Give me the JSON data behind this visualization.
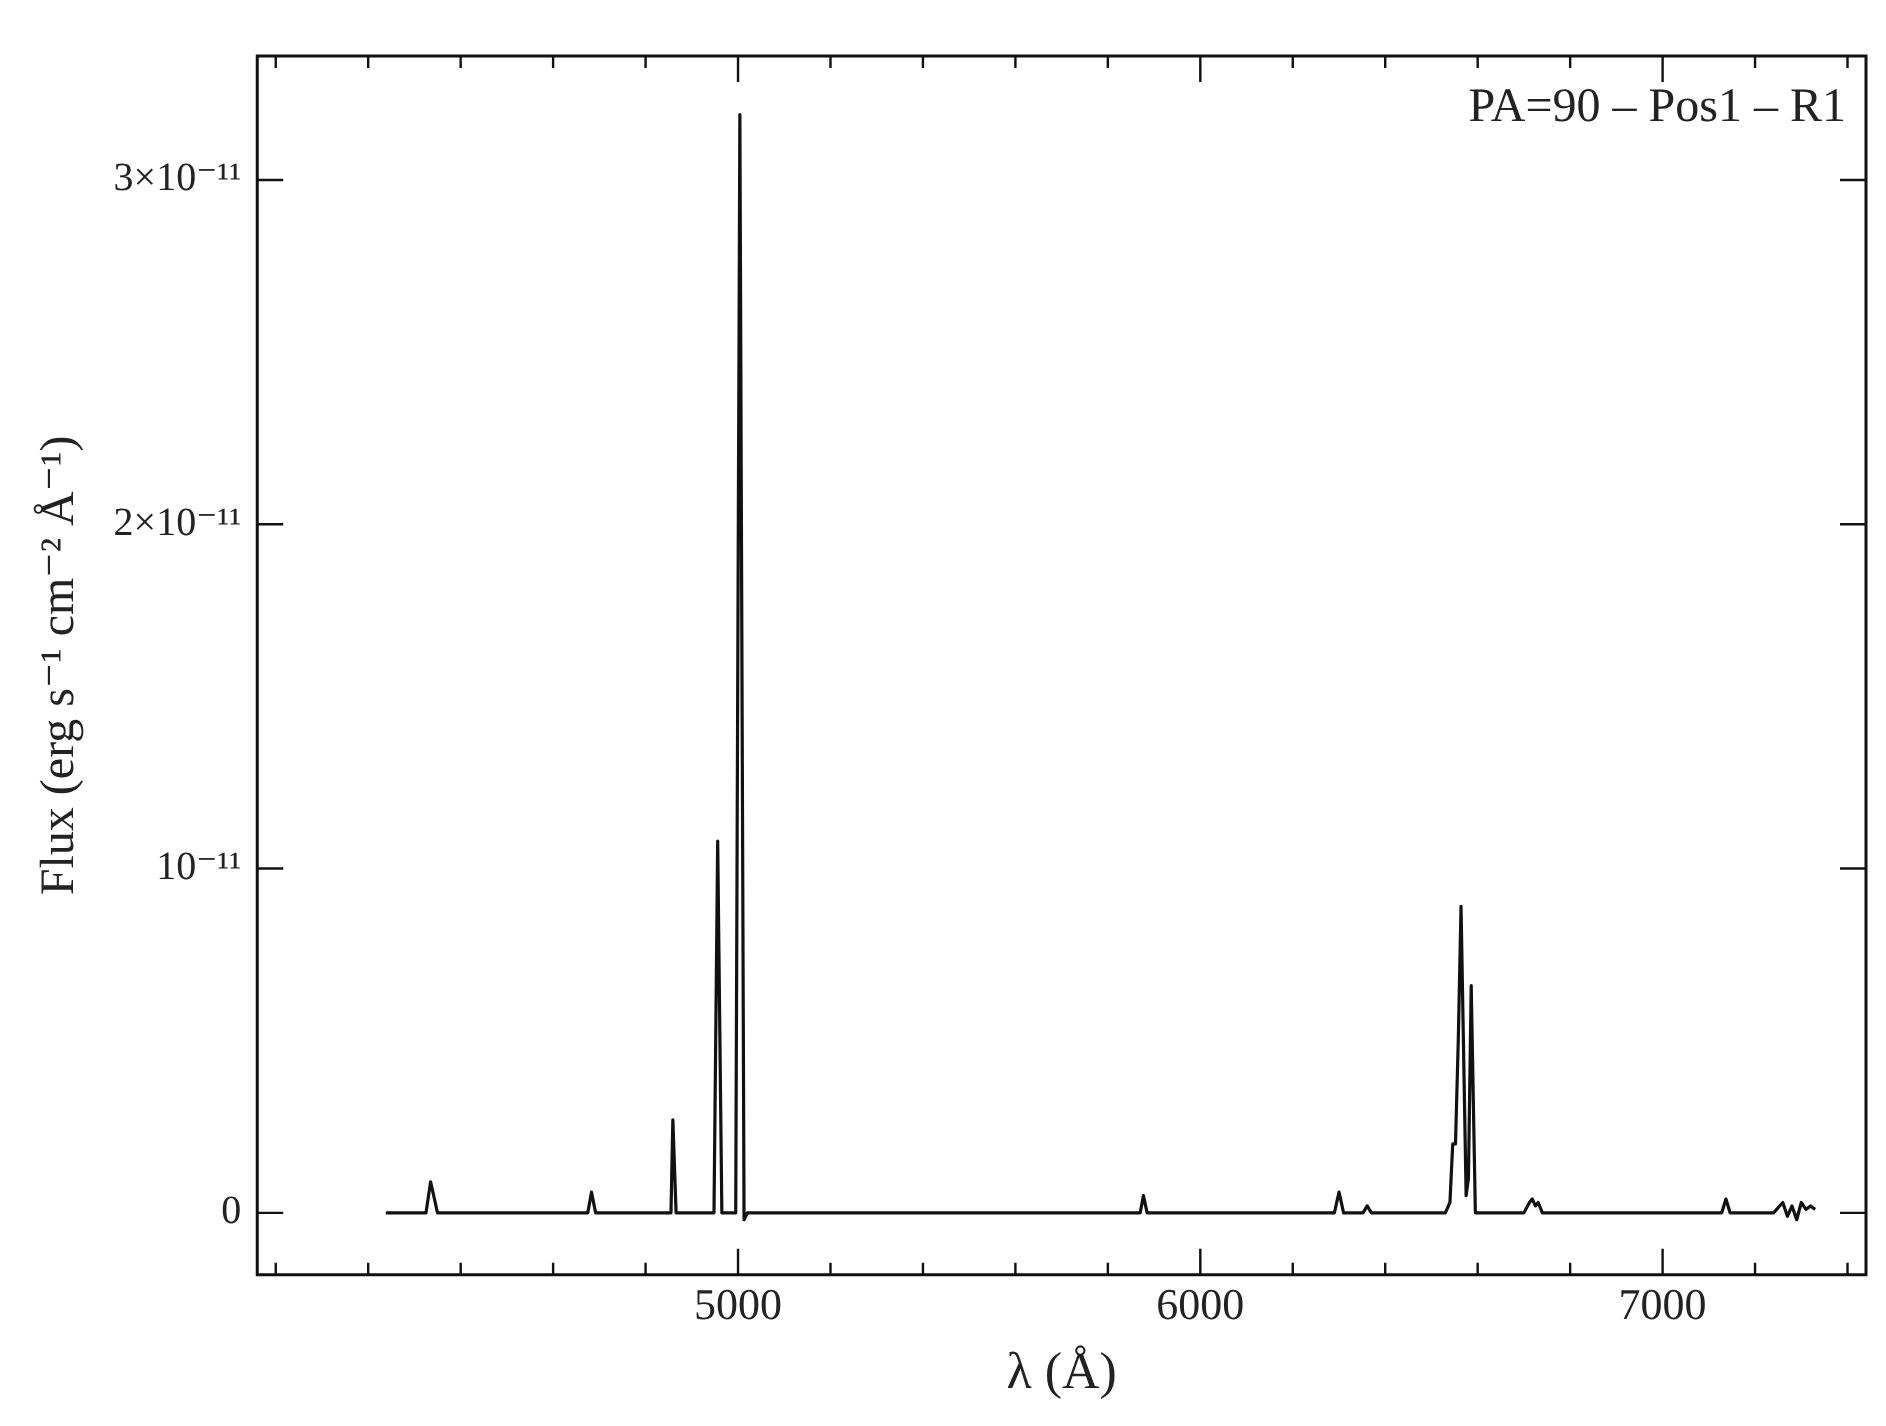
{
  "chart_data": {
    "type": "line",
    "xlabel": "λ (Å)",
    "ylabel": "Flux (erg s⁻¹ cm⁻² Å⁻¹)",
    "annotations": [
      "PA=90 – Pos1 – R1"
    ],
    "marker": "none",
    "line_style": "solid",
    "legend": false,
    "grid": false,
    "xlim": [
      3960,
      7440
    ],
    "ylim": [
      -1.8e-12,
      3.36e-11
    ],
    "xticks": [
      {
        "value": 4000,
        "label": null
      },
      {
        "value": 4200,
        "label": null
      },
      {
        "value": 4400,
        "label": null
      },
      {
        "value": 4600,
        "label": null
      },
      {
        "value": 4800,
        "label": null
      },
      5000,
      {
        "value": 5200,
        "label": null
      },
      {
        "value": 5400,
        "label": null
      },
      {
        "value": 5600,
        "label": null
      },
      {
        "value": 5800,
        "label": null
      },
      6000,
      {
        "value": 6200,
        "label": null
      },
      {
        "value": 6400,
        "label": null
      },
      {
        "value": 6600,
        "label": null
      },
      {
        "value": 6800,
        "label": null
      },
      7000,
      {
        "value": 7200,
        "label": null
      },
      {
        "value": 7400,
        "label": null
      }
    ],
    "yticks": [
      {
        "value": 0,
        "label": "0"
      },
      {
        "value": 1e-11,
        "label": "10⁻¹¹"
      },
      {
        "value": 2e-11,
        "label": "2×10⁻¹¹"
      },
      {
        "value": 3e-11,
        "label": "3×10⁻¹¹"
      }
    ],
    "series": [
      {
        "color": "#111111",
        "x": [
          4238,
          4300,
          4325,
          4335,
          4350,
          4400,
          4500,
          4600,
          4675,
          4683,
          4692,
          4750,
          4850,
          4855,
          4859,
          4866,
          4900,
          4948,
          4956,
          4965,
          4995,
          5004,
          5013,
          5020,
          5050,
          5250,
          5450,
          5650,
          5850,
          5870,
          5877,
          5885,
          6050,
          6250,
          6290,
          6300,
          6310,
          6352,
          6361,
          6370,
          6450,
          6530,
          6540,
          6546,
          6552,
          6558,
          6564,
          6575,
          6580,
          6586,
          6595,
          6620,
          6700,
          6712,
          6718,
          6725,
          6731,
          6740,
          6850,
          7000,
          7128,
          7137,
          7146,
          7200,
          7240,
          7260,
          7270,
          7280,
          7290,
          7300,
          7310,
          7320,
          7330
        ],
        "values": [
          0,
          0,
          0,
          9e-13,
          0,
          0,
          0,
          0,
          0,
          6e-13,
          0,
          0,
          0,
          0,
          2.7e-12,
          0,
          0,
          0,
          1.08e-11,
          0,
          0,
          3.19e-11,
          -2e-13,
          0,
          0,
          0,
          0,
          0,
          0,
          0,
          5e-13,
          0,
          0,
          0,
          0,
          6e-13,
          0,
          0,
          2e-13,
          0,
          0,
          0,
          3e-13,
          2e-12,
          2e-12,
          5e-12,
          8.9e-12,
          5e-13,
          1e-12,
          6.6e-12,
          0,
          0,
          0,
          3e-13,
          4e-13,
          2e-13,
          3e-13,
          0,
          0,
          0,
          0,
          4e-13,
          0,
          0,
          0,
          3e-13,
          -1e-13,
          2e-13,
          -2e-13,
          3e-13,
          1e-13,
          2e-13,
          1e-13
        ]
      }
    ]
  }
}
